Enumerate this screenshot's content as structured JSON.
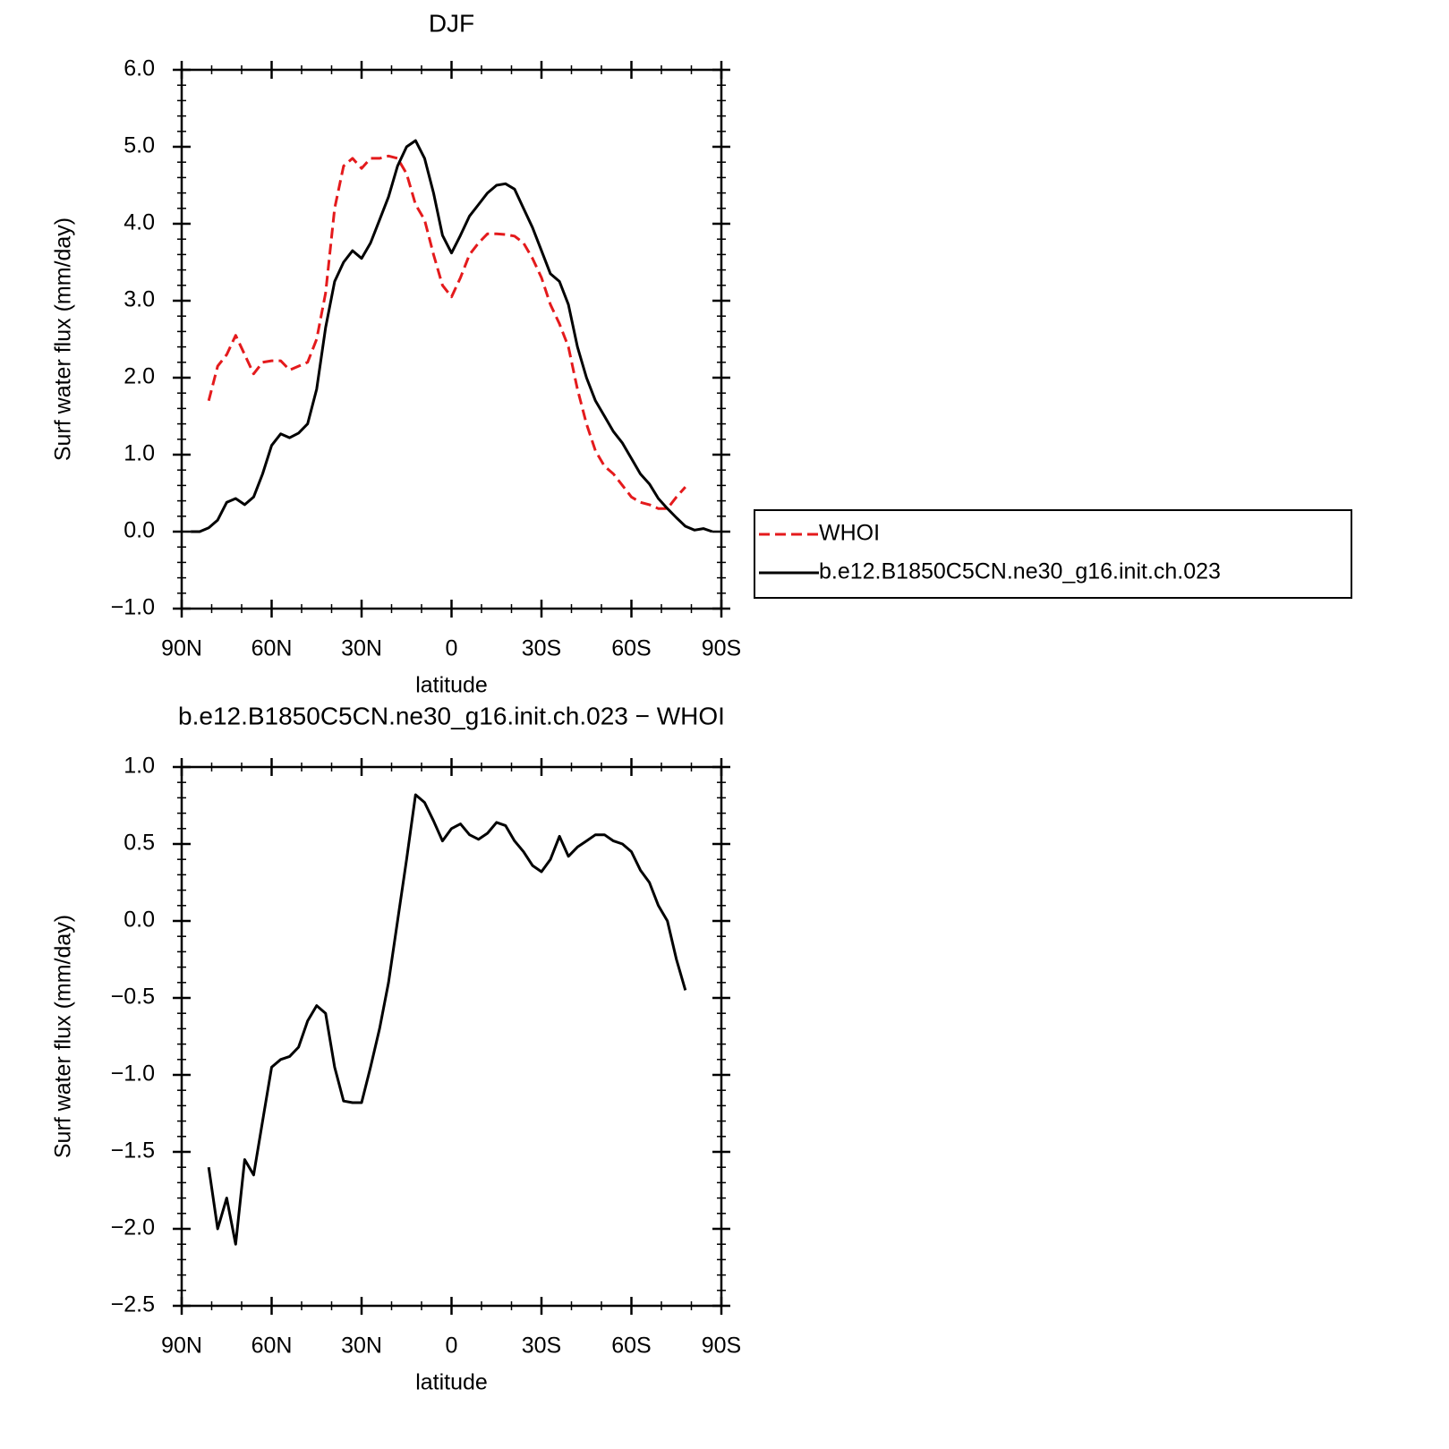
{
  "chart_data": [
    {
      "type": "line",
      "title": "DJF",
      "x_label": "latitude",
      "y_label": "Surf water flux (mm/day)",
      "x": [
        87,
        84,
        81,
        78,
        75,
        72,
        69,
        66,
        63,
        60,
        57,
        54,
        51,
        48,
        45,
        42,
        39,
        36,
        33,
        30,
        27,
        24,
        21,
        18,
        15,
        12,
        9,
        6,
        3,
        0,
        -3,
        -6,
        -9,
        -12,
        -15,
        -18,
        -21,
        -24,
        -27,
        -30,
        -33,
        -36,
        -39,
        -42,
        -45,
        -48,
        -51,
        -54,
        -57,
        -60,
        -63,
        -66,
        -69,
        -72,
        -75,
        -78,
        -81,
        -84,
        -87
      ],
      "xlim": [
        90,
        -90
      ],
      "xticks": [
        {
          "value": 90,
          "label": "90N"
        },
        {
          "value": 60,
          "label": "60N"
        },
        {
          "value": 30,
          "label": "30N"
        },
        0,
        {
          "value": -30,
          "label": "30S"
        },
        {
          "value": -60,
          "label": "60S"
        },
        {
          "value": -90,
          "label": "90S"
        }
      ],
      "ylim": [
        -1,
        6
      ],
      "yticks": [
        {
          "value": -1,
          "label": "−1.0"
        },
        {
          "value": 0,
          "label": "0.0"
        },
        {
          "value": 1,
          "label": "1.0"
        },
        {
          "value": 2,
          "label": "2.0"
        },
        {
          "value": 3,
          "label": "3.0"
        },
        {
          "value": 4,
          "label": "4.0"
        },
        {
          "value": 5,
          "label": "5.0"
        },
        {
          "value": 6,
          "label": "6.0"
        }
      ],
      "legend": "right",
      "series": [
        {
          "name": "WHOI",
          "color": "#e41a1c",
          "style": "dashed",
          "values": [
            null,
            null,
            1.7,
            2.15,
            2.3,
            2.55,
            2.3,
            2.05,
            2.2,
            2.22,
            2.22,
            2.1,
            2.15,
            2.2,
            2.5,
            3.1,
            4.2,
            4.75,
            4.85,
            4.72,
            4.85,
            4.85,
            4.88,
            4.85,
            4.65,
            4.25,
            4.05,
            3.6,
            3.2,
            3.05,
            3.3,
            3.6,
            3.75,
            3.87,
            3.87,
            3.86,
            3.84,
            3.75,
            3.55,
            3.3,
            2.95,
            2.7,
            2.4,
            1.85,
            1.4,
            1.05,
            0.85,
            0.75,
            0.6,
            0.45,
            0.38,
            0.35,
            0.3,
            0.3,
            0.45,
            0.58,
            null,
            null,
            null
          ]
        },
        {
          "name": "b.e12.B1850C5CN.ne30_g16.init.ch.023",
          "color": "#000000",
          "style": "solid",
          "values": [
            0,
            0,
            0.05,
            0.15,
            0.38,
            0.43,
            0.35,
            0.45,
            0.75,
            1.12,
            1.27,
            1.22,
            1.28,
            1.4,
            1.85,
            2.65,
            3.25,
            3.5,
            3.65,
            3.55,
            3.75,
            4.05,
            4.35,
            4.75,
            5.0,
            5.08,
            4.85,
            4.4,
            3.85,
            3.62,
            3.85,
            4.1,
            4.25,
            4.4,
            4.5,
            4.52,
            4.45,
            4.2,
            3.95,
            3.65,
            3.35,
            3.25,
            2.95,
            2.4,
            2.0,
            1.7,
            1.5,
            1.3,
            1.15,
            0.95,
            0.75,
            0.62,
            0.43,
            0.3,
            0.18,
            0.07,
            0.02,
            0.04,
            0
          ]
        }
      ]
    },
    {
      "type": "line",
      "title": "b.e12.B1850C5CN.ne30_g16.init.ch.023 − WHOI",
      "x_label": "latitude",
      "y_label": "Surf water flux (mm/day)",
      "x": [
        87,
        84,
        81,
        78,
        75,
        72,
        69,
        66,
        63,
        60,
        57,
        54,
        51,
        48,
        45,
        42,
        39,
        36,
        33,
        30,
        27,
        24,
        21,
        18,
        15,
        12,
        9,
        6,
        3,
        0,
        -3,
        -6,
        -9,
        -12,
        -15,
        -18,
        -21,
        -24,
        -27,
        -30,
        -33,
        -36,
        -39,
        -42,
        -45,
        -48,
        -51,
        -54,
        -57,
        -60,
        -63,
        -66,
        -69,
        -72,
        -75,
        -78,
        -81,
        -84,
        -87
      ],
      "xlim": [
        90,
        -90
      ],
      "xticks": [
        {
          "value": 90,
          "label": "90N"
        },
        {
          "value": 60,
          "label": "60N"
        },
        {
          "value": 30,
          "label": "30N"
        },
        0,
        {
          "value": -30,
          "label": "30S"
        },
        {
          "value": -60,
          "label": "60S"
        },
        {
          "value": -90,
          "label": "90S"
        }
      ],
      "ylim": [
        -2.5,
        1
      ],
      "yticks": [
        {
          "value": -2.5,
          "label": "−2.5"
        },
        {
          "value": -2,
          "label": "−2.0"
        },
        {
          "value": -1.5,
          "label": "−1.5"
        },
        {
          "value": -1,
          "label": "−1.0"
        },
        {
          "value": -0.5,
          "label": "−0.5"
        },
        {
          "value": 0,
          "label": "0.0"
        },
        0.5,
        {
          "value": 1,
          "label": "1.0"
        }
      ],
      "series": [
        {
          "color": "#000000",
          "style": "solid",
          "values": [
            null,
            null,
            -1.6,
            -2.0,
            -1.8,
            -2.1,
            -1.55,
            -1.65,
            -1.3,
            -0.95,
            -0.9,
            -0.88,
            -0.82,
            -0.65,
            -0.55,
            -0.6,
            -0.95,
            -1.17,
            -1.18,
            -1.18,
            -0.95,
            -0.7,
            -0.4,
            0.0,
            0.4,
            0.82,
            0.77,
            0.65,
            0.52,
            0.6,
            0.63,
            0.56,
            0.53,
            0.57,
            0.64,
            0.62,
            0.52,
            0.45,
            0.36,
            0.32,
            0.4,
            0.55,
            0.42,
            0.48,
            0.52,
            0.56,
            0.56,
            0.52,
            0.5,
            0.45,
            0.33,
            0.25,
            0.1,
            0.0,
            -0.25,
            -0.45,
            null,
            null,
            null
          ]
        }
      ]
    }
  ]
}
